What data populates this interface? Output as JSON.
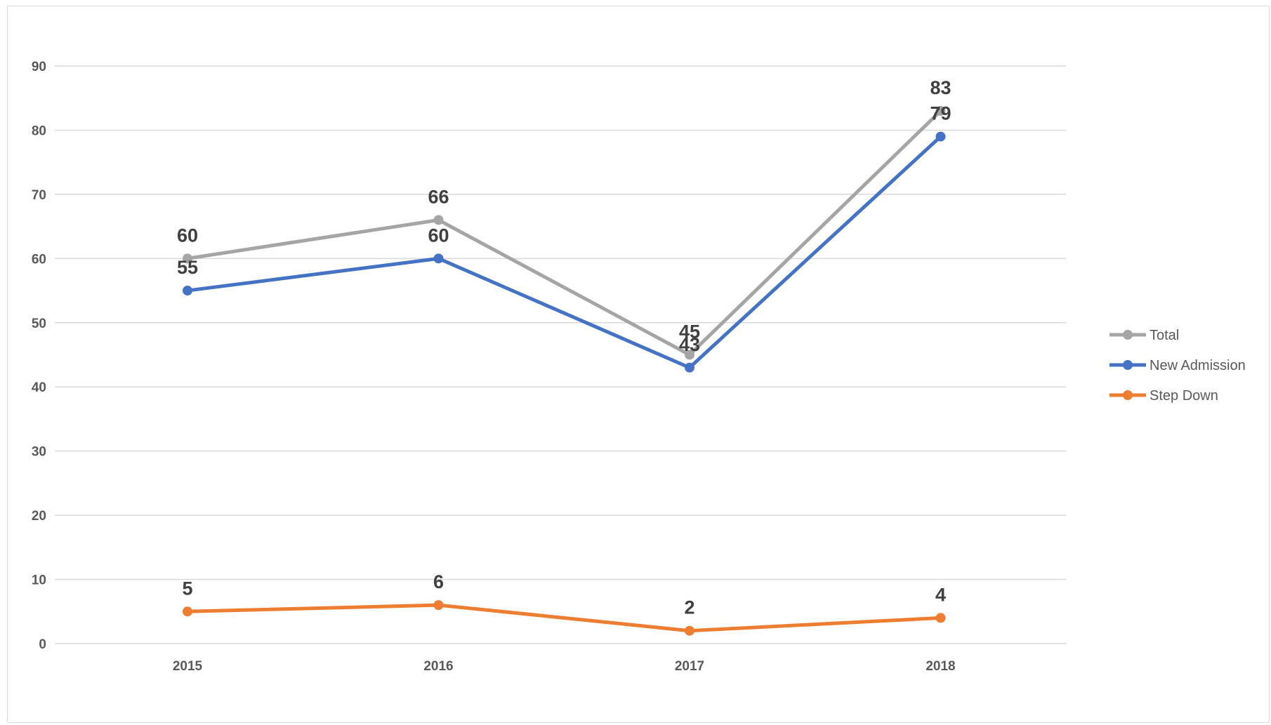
{
  "chart_data": {
    "type": "line",
    "title": "",
    "xlabel": "",
    "ylabel": "",
    "categories": [
      "2015",
      "2016",
      "2017",
      "2018"
    ],
    "ylim": [
      0,
      90
    ],
    "yticks": [
      0,
      10,
      20,
      30,
      40,
      50,
      60,
      70,
      80,
      90
    ],
    "grid": true,
    "legend_position": "right",
    "series": [
      {
        "name": "Total",
        "values": [
          60,
          66,
          45,
          83
        ],
        "color": "#a5a5a5"
      },
      {
        "name": "New Admission",
        "values": [
          55,
          60,
          43,
          79
        ],
        "color": "#4472c4"
      },
      {
        "name": "Step Down",
        "values": [
          5,
          6,
          2,
          4
        ],
        "color": "#ed7d31"
      }
    ],
    "data_labels": true
  }
}
